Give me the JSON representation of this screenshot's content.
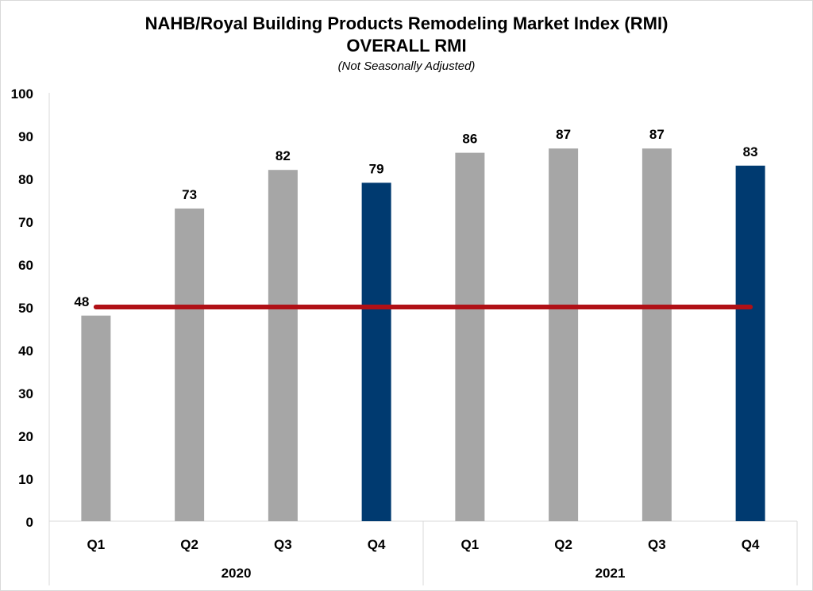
{
  "chart_data": {
    "type": "bar",
    "title": "NAHB/Royal Building Products Remodeling Market Index (RMI)",
    "subtitle": "OVERALL RMI",
    "note": "(Not Seasonally Adjusted)",
    "categories": [
      "Q1",
      "Q2",
      "Q3",
      "Q4",
      "Q1",
      "Q2",
      "Q3",
      "Q4"
    ],
    "groups": [
      {
        "label": "2020",
        "span": 4
      },
      {
        "label": "2021",
        "span": 4
      }
    ],
    "values": [
      48,
      73,
      82,
      79,
      86,
      87,
      87,
      83
    ],
    "highlight": [
      false,
      false,
      false,
      true,
      false,
      false,
      false,
      true
    ],
    "reference_line": 50,
    "ylim": [
      0,
      100
    ],
    "yticks": [
      0,
      10,
      20,
      30,
      40,
      50,
      60,
      70,
      80,
      90,
      100
    ],
    "grid": false,
    "colors": {
      "bar": "#a6a6a6",
      "highlight": "#003a70",
      "reference_line": "#b01016",
      "axis": "#d9d9d9"
    }
  }
}
